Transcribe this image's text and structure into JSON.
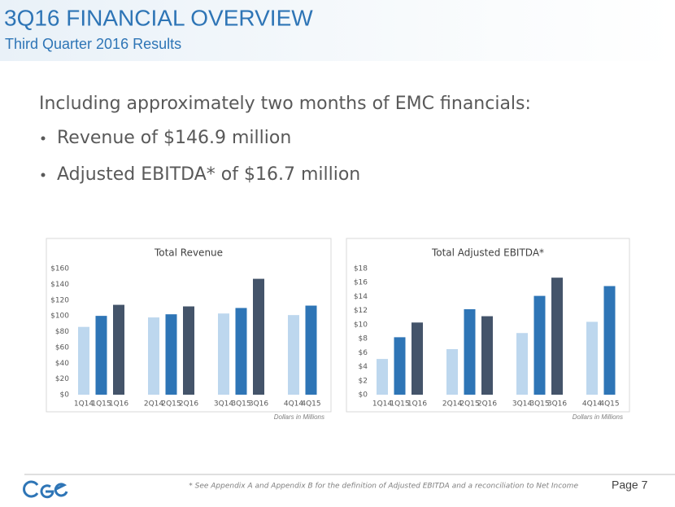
{
  "header": {
    "title": "3Q16 FINANCIAL OVERVIEW",
    "subtitle": "Third Quarter 2016 Results"
  },
  "body": {
    "intro": "Including approximately two months of EMC financials:",
    "bullets": [
      "Revenue of $146.9 million",
      "Adjusted EBITDA* of $16.7 million"
    ]
  },
  "chart_data": [
    {
      "type": "bar",
      "title": "Total Revenue",
      "note": "Dollars in Millions",
      "categories": [
        "1Q14",
        "1Q15",
        "1Q16",
        "2Q14",
        "2Q15",
        "2Q16",
        "3Q14",
        "3Q15",
        "3Q16",
        "4Q14",
        "4Q15"
      ],
      "values": [
        86,
        100,
        114,
        98,
        102,
        112,
        103,
        110,
        147,
        101,
        113
      ],
      "colors": [
        "#bdd7ee",
        "#2e75b6",
        "#44546a",
        "#bdd7ee",
        "#2e75b6",
        "#44546a",
        "#bdd7ee",
        "#2e75b6",
        "#44546a",
        "#bdd7ee",
        "#2e75b6"
      ],
      "ylim": [
        0,
        160
      ],
      "yticks": [
        {
          "value": 0,
          "label": "$0"
        },
        {
          "value": 20,
          "label": "$20"
        },
        {
          "value": 40,
          "label": "$40"
        },
        {
          "value": 60,
          "label": "$60"
        },
        {
          "value": 80,
          "label": "$80"
        },
        {
          "value": 100,
          "label": "$100"
        },
        {
          "value": 120,
          "label": "$120"
        },
        {
          "value": 140,
          "label": "$140"
        },
        {
          "value": 160,
          "label": "$160"
        }
      ],
      "grid": false
    },
    {
      "type": "bar",
      "title": "Total Adjusted EBITDA*",
      "note": "Dollars in Millions",
      "categories": [
        "1Q14",
        "1Q15",
        "1Q16",
        "2Q14",
        "2Q15",
        "2Q16",
        "3Q14",
        "3Q15",
        "3Q16",
        "4Q14",
        "4Q15"
      ],
      "values": [
        5.1,
        8.2,
        10.3,
        6.5,
        12.2,
        11.2,
        8.8,
        14.1,
        16.7,
        10.4,
        15.5
      ],
      "colors": [
        "#bdd7ee",
        "#2e75b6",
        "#44546a",
        "#bdd7ee",
        "#2e75b6",
        "#44546a",
        "#bdd7ee",
        "#2e75b6",
        "#44546a",
        "#bdd7ee",
        "#2e75b6"
      ],
      "ylim": [
        0,
        18
      ],
      "yticks": [
        {
          "value": 0,
          "label": "$0"
        },
        {
          "value": 2,
          "label": "$2"
        },
        {
          "value": 4,
          "label": "$4"
        },
        {
          "value": 6,
          "label": "$6"
        },
        {
          "value": 8,
          "label": "$8"
        },
        {
          "value": 10,
          "label": "$10"
        },
        {
          "value": 12,
          "label": "$12"
        },
        {
          "value": 14,
          "label": "$14"
        },
        {
          "value": 16,
          "label": "$16"
        },
        {
          "value": 18,
          "label": "$18"
        }
      ],
      "grid": false
    }
  ],
  "footer": {
    "footnote": "* See Appendix A and Appendix B for the definition of Adjusted EBITDA and a reconciliation to Net Income",
    "page": "Page 7"
  }
}
